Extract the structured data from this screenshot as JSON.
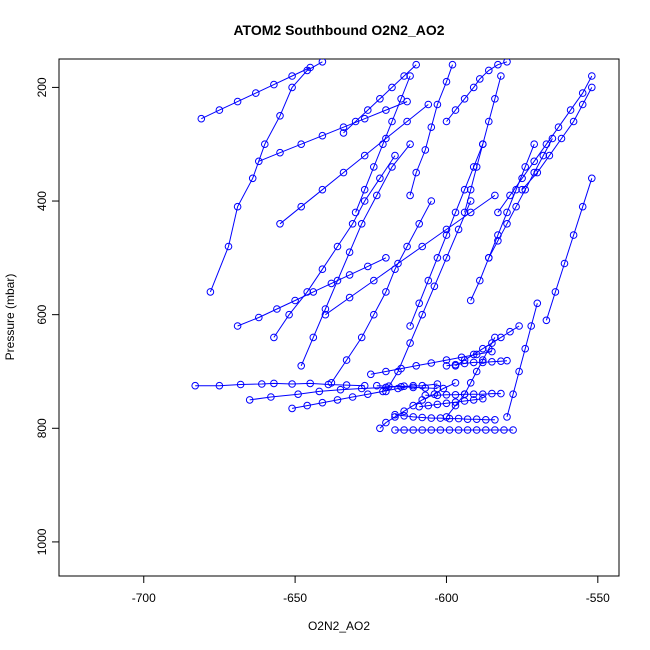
{
  "chart_data": {
    "type": "line",
    "title": "ATOM2 Southbound O2N2_AO2",
    "xlabel": "O2N2_AO2",
    "ylabel": "Pressure (mbar)",
    "xlim": [
      -728,
      -543
    ],
    "ylim": [
      1060,
      150
    ],
    "y_reversed": true,
    "grid": false,
    "series_color": "#0000ff",
    "marker": "open-circle",
    "x_ticks": [
      -700,
      -650,
      -600,
      -550
    ],
    "y_ticks": [
      200,
      400,
      600,
      800,
      1000
    ],
    "x_tick_labels": [
      "-700",
      "-650",
      "-600",
      "-550"
    ],
    "y_tick_labels": [
      "200",
      "400",
      "600",
      "800",
      "1000"
    ],
    "series": [
      {
        "x": [
          -678,
          -672,
          -669,
          -664,
          -660,
          -655,
          -651,
          -646,
          -641
        ],
        "y": [
          560,
          480,
          410,
          360,
          300,
          250,
          200,
          170,
          155
        ]
      },
      {
        "x": [
          -683,
          -675,
          -668,
          -661,
          -657,
          -651,
          -645,
          -639,
          -633,
          -627
        ],
        "y": [
          725,
          725,
          723,
          722,
          721,
          722,
          721,
          723,
          724,
          725
        ]
      },
      {
        "x": [
          -665,
          -658,
          -649,
          -642,
          -635,
          -628,
          -620,
          -614,
          -608,
          -603
        ],
        "y": [
          750,
          745,
          740,
          735,
          732,
          730,
          728,
          726,
          725,
          722
        ]
      },
      {
        "x": [
          -657,
          -652,
          -646,
          -641,
          -636,
          -631,
          -627,
          -622,
          -617
        ],
        "y": [
          640,
          600,
          560,
          520,
          480,
          440,
          400,
          360,
          320
        ]
      },
      {
        "x": [
          -648,
          -644,
          -640,
          -636,
          -632,
          -628,
          -623,
          -618,
          -612
        ],
        "y": [
          690,
          640,
          590,
          540,
          490,
          440,
          390,
          340,
          300
        ]
      },
      {
        "x": [
          -638,
          -633,
          -628,
          -624,
          -620,
          -617,
          -613,
          -609,
          -605
        ],
        "y": [
          720,
          680,
          640,
          600,
          560,
          520,
          480,
          440,
          400
        ]
      },
      {
        "x": [
          -622,
          -620,
          -617,
          -614,
          -611,
          -608,
          -604,
          -601,
          -597
        ],
        "y": [
          800,
          790,
          780,
          770,
          760,
          750,
          740,
          730,
          720
        ]
      },
      {
        "x": [
          -620,
          -616,
          -612,
          -608,
          -604,
          -600,
          -596,
          -592
        ],
        "y": [
          735,
          700,
          650,
          600,
          550,
          500,
          450,
          400
        ]
      },
      {
        "x": [
          -612,
          -609,
          -606,
          -603,
          -600,
          -597,
          -594,
          -591,
          -588
        ],
        "y": [
          620,
          580,
          540,
          500,
          460,
          420,
          380,
          340,
          300
        ]
      },
      {
        "x": [
          -600,
          -597,
          -594,
          -592,
          -590,
          -588,
          -586,
          -584
        ],
        "y": [
          780,
          760,
          740,
          720,
          700,
          680,
          660,
          640
        ]
      },
      {
        "x": [
          -597,
          -594,
          -591,
          -588,
          -585,
          -582,
          -579,
          -576
        ],
        "y": [
          690,
          680,
          670,
          660,
          650,
          640,
          630,
          620
        ]
      },
      {
        "x": [
          -592,
          -589,
          -586,
          -583,
          -580,
          -577,
          -574,
          -571
        ],
        "y": [
          575,
          540,
          500,
          460,
          420,
          380,
          340,
          300
        ]
      },
      {
        "x": [
          -586,
          -583,
          -580,
          -577,
          -574,
          -571,
          -568,
          -565
        ],
        "y": [
          500,
          470,
          440,
          410,
          380,
          350,
          320,
          290
        ]
      },
      {
        "x": [
          -583,
          -579,
          -575,
          -571,
          -567,
          -563,
          -559,
          -555,
          -552
        ],
        "y": [
          420,
          390,
          360,
          330,
          300,
          270,
          240,
          210,
          180
        ]
      },
      {
        "x": [
          -575,
          -570,
          -566,
          -562,
          -558,
          -555,
          -552
        ],
        "y": [
          380,
          350,
          320,
          290,
          260,
          230,
          200
        ]
      },
      {
        "x": [
          -600,
          -597,
          -594,
          -591,
          -589,
          -586,
          -583,
          -580
        ],
        "y": [
          260,
          240,
          220,
          200,
          185,
          170,
          160,
          155
        ]
      },
      {
        "x": [
          -612,
          -610,
          -607,
          -605,
          -603,
          -600,
          -598
        ],
        "y": [
          390,
          350,
          310,
          270,
          230,
          190,
          160
        ]
      },
      {
        "x": [
          -630,
          -627,
          -624,
          -621,
          -618,
          -615,
          -612
        ],
        "y": [
          420,
          380,
          340,
          300,
          260,
          220,
          180
        ]
      },
      {
        "x": [
          -617,
          -614,
          -611,
          -608,
          -605,
          -602,
          -599,
          -596,
          -593,
          -590,
          -587,
          -584,
          -581,
          -578
        ],
        "y": [
          803,
          803,
          803,
          803,
          803,
          803,
          803,
          803,
          803,
          803,
          803,
          803,
          803,
          803
        ]
      },
      {
        "x": [
          -617,
          -614,
          -611,
          -608,
          -605,
          -602,
          -599,
          -596,
          -593,
          -590,
          -587,
          -584
        ],
        "y": [
          776,
          778,
          780,
          781,
          782,
          782,
          783,
          783,
          784,
          784,
          785,
          785
        ]
      },
      {
        "x": [
          -607,
          -603,
          -600,
          -597,
          -594,
          -591,
          -588,
          -585,
          -582
        ],
        "y": [
          742,
          742,
          741,
          741,
          740,
          740,
          740,
          739,
          739
        ]
      },
      {
        "x": [
          -600,
          -597,
          -594,
          -591,
          -588,
          -585,
          -582,
          -580
        ],
        "y": [
          690,
          688,
          686,
          684,
          684,
          683,
          682,
          681
        ]
      },
      {
        "x": [
          -625,
          -620,
          -615,
          -610,
          -605,
          -600,
          -595,
          -590,
          -585
        ],
        "y": [
          705,
          700,
          695,
          690,
          685,
          680,
          675,
          670,
          665
        ]
      },
      {
        "x": [
          -609,
          -606,
          -603,
          -600,
          -597,
          -594,
          -591,
          -588
        ],
        "y": [
          762,
          760,
          758,
          756,
          754,
          752,
          750,
          748
        ]
      },
      {
        "x": [
          -669,
          -662,
          -656,
          -650,
          -644,
          -638,
          -632,
          -626,
          -620
        ],
        "y": [
          620,
          605,
          590,
          575,
          560,
          545,
          530,
          515,
          500
        ]
      },
      {
        "x": [
          -662,
          -655,
          -648,
          -641,
          -634,
          -627,
          -620,
          -613
        ],
        "y": [
          330,
          315,
          300,
          285,
          270,
          255,
          240,
          225
        ]
      },
      {
        "x": [
          -655,
          -648,
          -641,
          -634,
          -627,
          -620,
          -613,
          -606
        ],
        "y": [
          440,
          410,
          380,
          350,
          320,
          290,
          260,
          230
        ]
      },
      {
        "x": [
          -640,
          -632,
          -624,
          -616,
          -608,
          -600,
          -592,
          -584
        ],
        "y": [
          600,
          570,
          540,
          510,
          480,
          450,
          420,
          390
        ]
      },
      {
        "x": [
          -681,
          -675,
          -669,
          -663,
          -657,
          -651,
          -645
        ],
        "y": [
          255,
          240,
          225,
          210,
          195,
          180,
          165
        ]
      },
      {
        "x": [
          -634,
          -630,
          -626,
          -622,
          -618,
          -614,
          -610
        ],
        "y": [
          280,
          260,
          240,
          220,
          200,
          180,
          160
        ]
      },
      {
        "x": [
          -594,
          -592,
          -590,
          -588,
          -586,
          -584,
          -582
        ],
        "y": [
          420,
          380,
          340,
          300,
          260,
          220,
          180
        ]
      },
      {
        "x": [
          -567,
          -564,
          -561,
          -558,
          -555,
          -552
        ],
        "y": [
          610,
          560,
          510,
          460,
          410,
          360
        ]
      },
      {
        "x": [
          -580,
          -578,
          -576,
          -574,
          -572,
          -570
        ],
        "y": [
          780,
          740,
          700,
          660,
          620,
          580
        ]
      },
      {
        "x": [
          -651,
          -646,
          -641,
          -636,
          -631,
          -626,
          -621,
          -616,
          -611
        ],
        "y": [
          765,
          760,
          755,
          750,
          745,
          740,
          735,
          730,
          725
        ]
      },
      {
        "x": [
          -623,
          -619,
          -615,
          -611,
          -607,
          -603
        ],
        "y": [
          725,
          726,
          727,
          728,
          729,
          730
        ]
      }
    ]
  }
}
